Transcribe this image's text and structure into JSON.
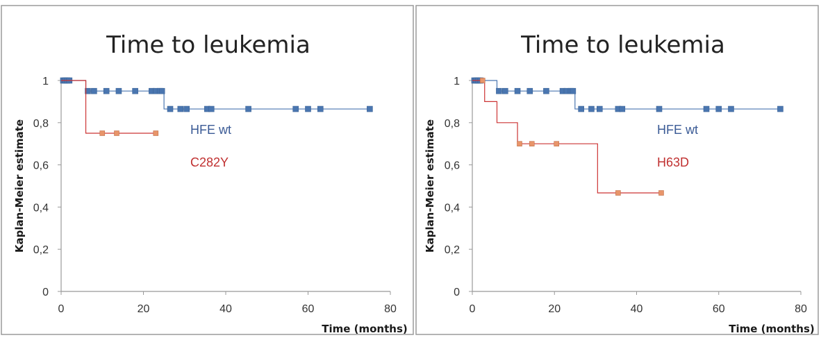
{
  "chart_data": [
    {
      "type": "line",
      "step": true,
      "title": "Time to leukemia",
      "xlabel": "Time (months)",
      "ylabel": "Kaplan-Meier estimate",
      "xlim": [
        0,
        80
      ],
      "ylim": [
        0,
        1
      ],
      "xticks": [
        "0",
        "20",
        "40",
        "60",
        "80"
      ],
      "yticks": [
        "0",
        "0,2",
        "0,4",
        "0,6",
        "0,8",
        "1"
      ],
      "series": [
        {
          "name": "HFE wt",
          "color": "#4a76b0",
          "steps": [
            [
              0,
              1
            ],
            [
              6,
              0.95
            ],
            [
              25,
              0.865
            ],
            [
              75,
              0.865
            ]
          ],
          "censored": [
            [
              0.5,
              1
            ],
            [
              1,
              1
            ],
            [
              1.5,
              1
            ],
            [
              2,
              1
            ],
            [
              6.5,
              0.95
            ],
            [
              8,
              0.95
            ],
            [
              11,
              0.95
            ],
            [
              14,
              0.95
            ],
            [
              18,
              0.95
            ],
            [
              22,
              0.95
            ],
            [
              23,
              0.95
            ],
            [
              24,
              0.95
            ],
            [
              24.5,
              0.95
            ],
            [
              26.5,
              0.865
            ],
            [
              29,
              0.865
            ],
            [
              30.5,
              0.865
            ],
            [
              35.5,
              0.865
            ],
            [
              36.5,
              0.865
            ],
            [
              45.5,
              0.865
            ],
            [
              57,
              0.865
            ],
            [
              60,
              0.865
            ],
            [
              63,
              0.865
            ],
            [
              75,
              0.865
            ]
          ]
        },
        {
          "name": "C282Y",
          "color": "#cc3333",
          "marker_color": "#e8956a",
          "steps": [
            [
              0,
              1
            ],
            [
              6,
              1
            ],
            [
              6,
              0.75
            ],
            [
              23,
              0.75
            ]
          ],
          "censored": [
            [
              10,
              0.75
            ],
            [
              13.5,
              0.75
            ],
            [
              23,
              0.75
            ]
          ]
        }
      ]
    },
    {
      "type": "line",
      "step": true,
      "title": "Time to leukemia",
      "xlabel": "Time (months)",
      "ylabel": "Kaplan-Meier estimate",
      "xlim": [
        0,
        80
      ],
      "ylim": [
        0,
        1
      ],
      "xticks": [
        "0",
        "20",
        "40",
        "60",
        "80"
      ],
      "yticks": [
        "0",
        "0,2",
        "0,4",
        "0,6",
        "0,8",
        "1"
      ],
      "series": [
        {
          "name": "HFE wt",
          "color": "#4a76b0",
          "steps": [
            [
              0,
              1
            ],
            [
              6,
              0.95
            ],
            [
              25,
              0.865
            ],
            [
              75,
              0.865
            ]
          ],
          "censored": [
            [
              0.5,
              1
            ],
            [
              1,
              1
            ],
            [
              1.5,
              1
            ],
            [
              2,
              1
            ],
            [
              6.5,
              0.95
            ],
            [
              8,
              0.95
            ],
            [
              11,
              0.95
            ],
            [
              14,
              0.95
            ],
            [
              18,
              0.95
            ],
            [
              22,
              0.95
            ],
            [
              23,
              0.95
            ],
            [
              24,
              0.95
            ],
            [
              24.5,
              0.95
            ],
            [
              26.5,
              0.865
            ],
            [
              29,
              0.865
            ],
            [
              31,
              0.865
            ],
            [
              35.5,
              0.865
            ],
            [
              36.5,
              0.865
            ],
            [
              45.5,
              0.865
            ],
            [
              57,
              0.865
            ],
            [
              60,
              0.865
            ],
            [
              63,
              0.865
            ],
            [
              75,
              0.865
            ]
          ]
        },
        {
          "name": "H63D",
          "color": "#cc3333",
          "marker_color": "#e8956a",
          "steps": [
            [
              0,
              1
            ],
            [
              3,
              1
            ],
            [
              3,
              0.9
            ],
            [
              6,
              0.9
            ],
            [
              6,
              0.8
            ],
            [
              11,
              0.8
            ],
            [
              11,
              0.7
            ],
            [
              30.5,
              0.7
            ],
            [
              30.5,
              0.467
            ],
            [
              46,
              0.467
            ]
          ],
          "censored": [
            [
              2.5,
              1
            ],
            [
              11.5,
              0.7
            ],
            [
              14.5,
              0.7
            ],
            [
              20.5,
              0.7
            ],
            [
              35.5,
              0.467
            ],
            [
              46,
              0.467
            ]
          ]
        }
      ]
    }
  ]
}
